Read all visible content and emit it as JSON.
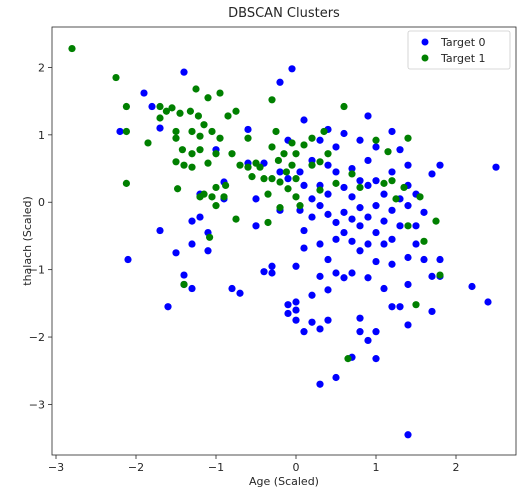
{
  "chart_data": {
    "type": "scatter",
    "title": "DBSCAN Clusters",
    "xlabel": "Age (Scaled)",
    "ylabel": "thalach (Scaled)",
    "xlim": [
      -3.05,
      2.75
    ],
    "ylim": [
      -3.75,
      2.6
    ],
    "xticks": [
      -3,
      -2,
      -1,
      0,
      1,
      2
    ],
    "yticks": [
      -3,
      -2,
      -1,
      0,
      1,
      2
    ],
    "grid": false,
    "legend_position": "top-right",
    "series": [
      {
        "name": "Target 0",
        "color": "#0000ff",
        "points": [
          [
            -2.2,
            1.05
          ],
          [
            -2.1,
            -0.85
          ],
          [
            -1.9,
            1.62
          ],
          [
            -1.8,
            1.42
          ],
          [
            -1.7,
            1.1
          ],
          [
            -1.7,
            -0.42
          ],
          [
            -1.6,
            -1.55
          ],
          [
            -1.5,
            -0.75
          ],
          [
            -1.4,
            1.93
          ],
          [
            -1.4,
            -1.08
          ],
          [
            -1.4,
            -1.22
          ],
          [
            -1.3,
            -0.28
          ],
          [
            -1.3,
            -0.62
          ],
          [
            -1.3,
            -1.28
          ],
          [
            -1.2,
            0.12
          ],
          [
            -1.2,
            -0.22
          ],
          [
            -1.1,
            -0.45
          ],
          [
            -1.1,
            -0.72
          ],
          [
            -1.0,
            0.78
          ],
          [
            -0.9,
            0.3
          ],
          [
            -0.9,
            0.05
          ],
          [
            -0.8,
            -1.28
          ],
          [
            -0.7,
            -1.35
          ],
          [
            -0.6,
            1.08
          ],
          [
            -0.6,
            0.58
          ],
          [
            -0.5,
            0.05
          ],
          [
            -0.5,
            -0.35
          ],
          [
            -0.4,
            0.58
          ],
          [
            -0.4,
            -1.03
          ],
          [
            -0.3,
            -0.95
          ],
          [
            -0.3,
            -1.05
          ],
          [
            -0.2,
            1.78
          ],
          [
            -0.2,
            0.45
          ],
          [
            -0.2,
            -0.12
          ],
          [
            -0.1,
            0.92
          ],
          [
            -0.1,
            0.35
          ],
          [
            -0.1,
            -1.52
          ],
          [
            -0.1,
            -1.65
          ],
          [
            -0.05,
            1.98
          ],
          [
            0.0,
            -1.48
          ],
          [
            0.0,
            -1.6
          ],
          [
            0.0,
            -1.75
          ],
          [
            0.0,
            -0.95
          ],
          [
            0.05,
            0.45
          ],
          [
            0.05,
            -0.12
          ],
          [
            0.1,
            1.22
          ],
          [
            0.1,
            0.25
          ],
          [
            0.1,
            -0.42
          ],
          [
            0.1,
            -0.68
          ],
          [
            0.1,
            -1.92
          ],
          [
            0.2,
            0.62
          ],
          [
            0.2,
            0.05
          ],
          [
            0.2,
            -0.22
          ],
          [
            0.2,
            -1.38
          ],
          [
            0.2,
            -1.78
          ],
          [
            0.3,
            0.92
          ],
          [
            0.3,
            0.25
          ],
          [
            0.3,
            -0.05
          ],
          [
            0.3,
            -0.62
          ],
          [
            0.3,
            -1.1
          ],
          [
            0.3,
            -1.88
          ],
          [
            0.3,
            -2.7
          ],
          [
            0.4,
            1.08
          ],
          [
            0.4,
            0.55
          ],
          [
            0.4,
            0.12
          ],
          [
            0.4,
            -0.18
          ],
          [
            0.4,
            -0.85
          ],
          [
            0.4,
            -1.3
          ],
          [
            0.4,
            -1.75
          ],
          [
            0.5,
            0.45
          ],
          [
            0.5,
            0.82
          ],
          [
            0.5,
            -0.3
          ],
          [
            0.5,
            -0.55
          ],
          [
            0.5,
            -1.05
          ],
          [
            0.5,
            -2.6
          ],
          [
            0.6,
            1.02
          ],
          [
            0.6,
            0.22
          ],
          [
            0.6,
            -0.15
          ],
          [
            0.6,
            -0.45
          ],
          [
            0.6,
            -1.12
          ],
          [
            0.7,
            0.5
          ],
          [
            0.7,
            0.08
          ],
          [
            0.7,
            -0.25
          ],
          [
            0.7,
            -0.58
          ],
          [
            0.7,
            -1.05
          ],
          [
            0.7,
            -2.3
          ],
          [
            0.8,
            0.92
          ],
          [
            0.8,
            0.32
          ],
          [
            0.8,
            -0.08
          ],
          [
            0.8,
            -0.35
          ],
          [
            0.8,
            -0.72
          ],
          [
            0.8,
            -1.72
          ],
          [
            0.8,
            -1.92
          ],
          [
            0.9,
            1.28
          ],
          [
            0.9,
            0.62
          ],
          [
            0.9,
            0.25
          ],
          [
            0.9,
            -0.22
          ],
          [
            0.9,
            -0.62
          ],
          [
            0.9,
            -1.12
          ],
          [
            0.9,
            -2.05
          ],
          [
            1.0,
            0.82
          ],
          [
            1.0,
            0.32
          ],
          [
            1.0,
            -0.05
          ],
          [
            1.0,
            -0.45
          ],
          [
            1.0,
            -0.88
          ],
          [
            1.0,
            -2.32
          ],
          [
            1.0,
            -1.92
          ],
          [
            1.1,
            0.12
          ],
          [
            1.1,
            -0.28
          ],
          [
            1.1,
            -0.62
          ],
          [
            1.1,
            -1.28
          ],
          [
            1.2,
            1.05
          ],
          [
            1.2,
            0.45
          ],
          [
            1.2,
            -0.12
          ],
          [
            1.2,
            -0.55
          ],
          [
            1.2,
            -0.92
          ],
          [
            1.2,
            -1.55
          ],
          [
            1.3,
            0.78
          ],
          [
            1.3,
            0.05
          ],
          [
            1.3,
            -0.35
          ],
          [
            1.3,
            -1.55
          ],
          [
            1.4,
            0.55
          ],
          [
            1.4,
            0.25
          ],
          [
            1.4,
            -0.05
          ],
          [
            1.4,
            -0.82
          ],
          [
            1.4,
            -1.22
          ],
          [
            1.4,
            -3.45
          ],
          [
            1.4,
            -1.82
          ],
          [
            1.5,
            0.12
          ],
          [
            1.5,
            -0.35
          ],
          [
            1.5,
            -0.62
          ],
          [
            1.6,
            -0.15
          ],
          [
            1.6,
            -0.85
          ],
          [
            1.7,
            0.42
          ],
          [
            1.7,
            -1.1
          ],
          [
            1.7,
            -1.62
          ],
          [
            1.8,
            0.55
          ],
          [
            1.8,
            -0.85
          ],
          [
            1.8,
            -1.1
          ],
          [
            2.2,
            -1.25
          ],
          [
            2.4,
            -1.48
          ],
          [
            2.5,
            0.52
          ]
        ]
      },
      {
        "name": "Target 1",
        "color": "#008000",
        "points": [
          [
            -2.8,
            2.28
          ],
          [
            -2.25,
            1.85
          ],
          [
            -2.12,
            1.42
          ],
          [
            -2.12,
            1.05
          ],
          [
            -2.12,
            0.28
          ],
          [
            -1.85,
            0.88
          ],
          [
            -1.7,
            1.42
          ],
          [
            -1.7,
            1.25
          ],
          [
            -1.62,
            1.35
          ],
          [
            -1.55,
            1.4
          ],
          [
            -1.5,
            1.05
          ],
          [
            -1.5,
            0.95
          ],
          [
            -1.5,
            0.6
          ],
          [
            -1.48,
            0.2
          ],
          [
            -1.45,
            1.32
          ],
          [
            -1.42,
            0.78
          ],
          [
            -1.4,
            0.55
          ],
          [
            -1.4,
            -1.22
          ],
          [
            -1.32,
            1.35
          ],
          [
            -1.3,
            1.05
          ],
          [
            -1.3,
            0.72
          ],
          [
            -1.3,
            0.52
          ],
          [
            -1.25,
            1.68
          ],
          [
            -1.22,
            1.28
          ],
          [
            -1.2,
            0.98
          ],
          [
            -1.2,
            0.78
          ],
          [
            -1.2,
            0.08
          ],
          [
            -1.15,
            1.15
          ],
          [
            -1.15,
            0.12
          ],
          [
            -1.1,
            1.55
          ],
          [
            -1.1,
            0.58
          ],
          [
            -1.08,
            -0.52
          ],
          [
            -1.05,
            1.05
          ],
          [
            -1.05,
            0.08
          ],
          [
            -1.0,
            0.72
          ],
          [
            -1.0,
            0.22
          ],
          [
            -1.0,
            -0.05
          ],
          [
            -0.95,
            1.62
          ],
          [
            -0.95,
            0.95
          ],
          [
            -0.9,
            0.08
          ],
          [
            -0.88,
            0.25
          ],
          [
            -0.85,
            1.28
          ],
          [
            -0.8,
            0.72
          ],
          [
            -0.75,
            1.35
          ],
          [
            -0.75,
            -0.25
          ],
          [
            -0.7,
            0.55
          ],
          [
            -0.6,
            0.95
          ],
          [
            -0.6,
            0.52
          ],
          [
            -0.55,
            0.38
          ],
          [
            -0.5,
            0.58
          ],
          [
            -0.45,
            0.52
          ],
          [
            -0.4,
            0.35
          ],
          [
            -0.35,
            0.12
          ],
          [
            -0.35,
            -0.3
          ],
          [
            -0.3,
            1.52
          ],
          [
            -0.3,
            0.82
          ],
          [
            -0.3,
            0.35
          ],
          [
            -0.25,
            1.05
          ],
          [
            -0.22,
            0.62
          ],
          [
            -0.2,
            0.3
          ],
          [
            -0.2,
            -0.08
          ],
          [
            -0.15,
            0.72
          ],
          [
            -0.12,
            0.45
          ],
          [
            -0.1,
            0.2
          ],
          [
            -0.05,
            0.88
          ],
          [
            -0.05,
            0.55
          ],
          [
            0.0,
            0.72
          ],
          [
            0.0,
            0.35
          ],
          [
            0.0,
            0.08
          ],
          [
            0.05,
            -0.05
          ],
          [
            0.1,
            0.85
          ],
          [
            0.2,
            0.95
          ],
          [
            0.2,
            0.55
          ],
          [
            0.3,
            0.6
          ],
          [
            0.3,
            0.18
          ],
          [
            0.35,
            1.05
          ],
          [
            0.4,
            0.72
          ],
          [
            0.5,
            0.28
          ],
          [
            0.6,
            1.42
          ],
          [
            0.65,
            -2.32
          ],
          [
            0.7,
            0.42
          ],
          [
            0.8,
            0.22
          ],
          [
            1.0,
            0.92
          ],
          [
            1.1,
            0.28
          ],
          [
            1.15,
            0.75
          ],
          [
            1.2,
            0.32
          ],
          [
            1.25,
            0.05
          ],
          [
            1.35,
            0.22
          ],
          [
            1.4,
            -0.35
          ],
          [
            1.4,
            0.95
          ],
          [
            1.5,
            -1.52
          ],
          [
            1.55,
            0.08
          ],
          [
            1.6,
            -0.58
          ],
          [
            1.75,
            -0.28
          ],
          [
            1.8,
            -1.08
          ]
        ]
      }
    ]
  }
}
